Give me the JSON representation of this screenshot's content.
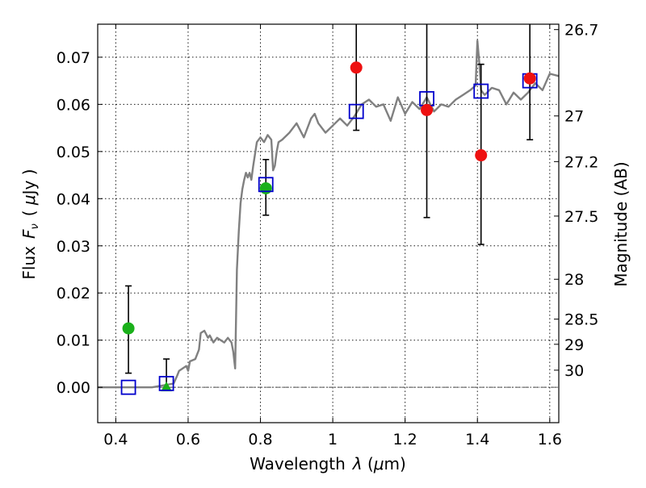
{
  "chart_data": {
    "type": "scatter",
    "xlabel_text": "Wavelength",
    "xlabel_symbol": "λ",
    "xlabel_unit_open": " (",
    "xlabel_unit_mu": "μ",
    "xlabel_unit_rest": "m)",
    "ylabel_text": "Flux",
    "ylabel_symbol": "F",
    "ylabel_symbol_sub": "ν",
    "ylabel_unit_open": "( ",
    "ylabel_unit_mu": "μ",
    "ylabel_unit_rest": "Jy )",
    "y2label": "Magnitude (AB)",
    "xlim": [
      0.35,
      1.625
    ],
    "ylim": [
      -0.0075,
      0.077
    ],
    "grid": true,
    "x_ticks": [
      {
        "value": 0.4,
        "label": "0.4"
      },
      {
        "value": 0.6,
        "label": "0.6"
      },
      {
        "value": 0.8,
        "label": "0.8"
      },
      {
        "value": 1.0,
        "label": "1"
      },
      {
        "value": 1.2,
        "label": "1.2"
      },
      {
        "value": 1.4,
        "label": "1.4"
      },
      {
        "value": 1.6,
        "label": "1.6"
      }
    ],
    "y_ticks": [
      {
        "value": 0.0,
        "label": "0.00"
      },
      {
        "value": 0.01,
        "label": "0.01"
      },
      {
        "value": 0.02,
        "label": "0.02"
      },
      {
        "value": 0.03,
        "label": "0.03"
      },
      {
        "value": 0.04,
        "label": "0.04"
      },
      {
        "value": 0.05,
        "label": "0.05"
      },
      {
        "value": 0.06,
        "label": "0.06"
      },
      {
        "value": 0.07,
        "label": "0.07"
      }
    ],
    "magnitude_ticks": [
      {
        "value": 26.7,
        "label": "26.7"
      },
      {
        "value": 27,
        "label": "27"
      },
      {
        "value": 27.2,
        "label": "27.2"
      },
      {
        "value": 27.5,
        "label": "27.5"
      },
      {
        "value": 28,
        "label": "28"
      },
      {
        "value": 28.5,
        "label": "28.5"
      },
      {
        "value": 29,
        "label": "29"
      },
      {
        "value": 30,
        "label": "30"
      }
    ],
    "colors": {
      "sed": "#808080",
      "model_box": "#0000cc",
      "optical": "#1ab01a",
      "nir": "#ee1111",
      "errorbar": "#000000",
      "zero_line": "#555555"
    },
    "sed_model": {
      "x": [
        0.35,
        0.5,
        0.56,
        0.57,
        0.575,
        0.585,
        0.595,
        0.6,
        0.605,
        0.62,
        0.63,
        0.635,
        0.645,
        0.655,
        0.66,
        0.67,
        0.68,
        0.69,
        0.7,
        0.71,
        0.72,
        0.725,
        0.73,
        0.735,
        0.74,
        0.745,
        0.75,
        0.755,
        0.76,
        0.765,
        0.77,
        0.775,
        0.78,
        0.79,
        0.8,
        0.81,
        0.82,
        0.83,
        0.835,
        0.84,
        0.845,
        0.85,
        0.86,
        0.88,
        0.9,
        0.92,
        0.94,
        0.95,
        0.96,
        0.98,
        1.0,
        1.02,
        1.04,
        1.06,
        1.08,
        1.1,
        1.12,
        1.14,
        1.16,
        1.18,
        1.2,
        1.22,
        1.24,
        1.26,
        1.28,
        1.3,
        1.32,
        1.34,
        1.36,
        1.38,
        1.395,
        1.4,
        1.405,
        1.41,
        1.42,
        1.44,
        1.46,
        1.48,
        1.5,
        1.52,
        1.54,
        1.56,
        1.58,
        1.6,
        1.625
      ],
      "y": [
        0.0,
        0.0,
        0.0008,
        0.0025,
        0.0035,
        0.004,
        0.0045,
        0.0035,
        0.0055,
        0.006,
        0.008,
        0.0115,
        0.012,
        0.0105,
        0.011,
        0.0095,
        0.0105,
        0.01,
        0.0095,
        0.0105,
        0.0095,
        0.0075,
        0.004,
        0.025,
        0.033,
        0.039,
        0.042,
        0.044,
        0.0455,
        0.0445,
        0.0455,
        0.044,
        0.047,
        0.052,
        0.053,
        0.052,
        0.0535,
        0.0525,
        0.046,
        0.047,
        0.05,
        0.052,
        0.0525,
        0.054,
        0.056,
        0.053,
        0.057,
        0.058,
        0.056,
        0.054,
        0.0555,
        0.057,
        0.0555,
        0.0575,
        0.06,
        0.061,
        0.0595,
        0.06,
        0.0565,
        0.0615,
        0.058,
        0.0605,
        0.059,
        0.0615,
        0.0585,
        0.06,
        0.0595,
        0.061,
        0.062,
        0.063,
        0.064,
        0.0735,
        0.069,
        0.063,
        0.062,
        0.0635,
        0.063,
        0.06,
        0.0625,
        0.061,
        0.0625,
        0.0645,
        0.063,
        0.0665,
        0.066
      ]
    },
    "model_points": {
      "x": [
        0.435,
        0.54,
        0.815,
        1.065,
        1.26,
        1.41,
        1.545
      ],
      "y": [
        0.0,
        0.0008,
        0.043,
        0.0585,
        0.0612,
        0.0628,
        0.065
      ]
    },
    "optical_points": {
      "x": [
        0.435,
        0.54,
        0.815
      ],
      "y": [
        0.0125,
        0.0,
        0.0422
      ],
      "yerr_low": [
        0.003,
        0.0,
        0.0365
      ],
      "yerr_high": [
        0.0215,
        0.006,
        0.0483
      ],
      "markers": [
        "circle",
        "triangle",
        "circle"
      ]
    },
    "nir_points": {
      "x": [
        1.065,
        1.26,
        1.41,
        1.545
      ],
      "y": [
        0.0678,
        0.0588,
        0.0492,
        0.0655
      ],
      "yerr_low": [
        0.0545,
        0.036,
        0.0303,
        0.0525
      ],
      "yerr_high": [
        0.077,
        0.077,
        0.0685,
        0.077
      ]
    }
  }
}
